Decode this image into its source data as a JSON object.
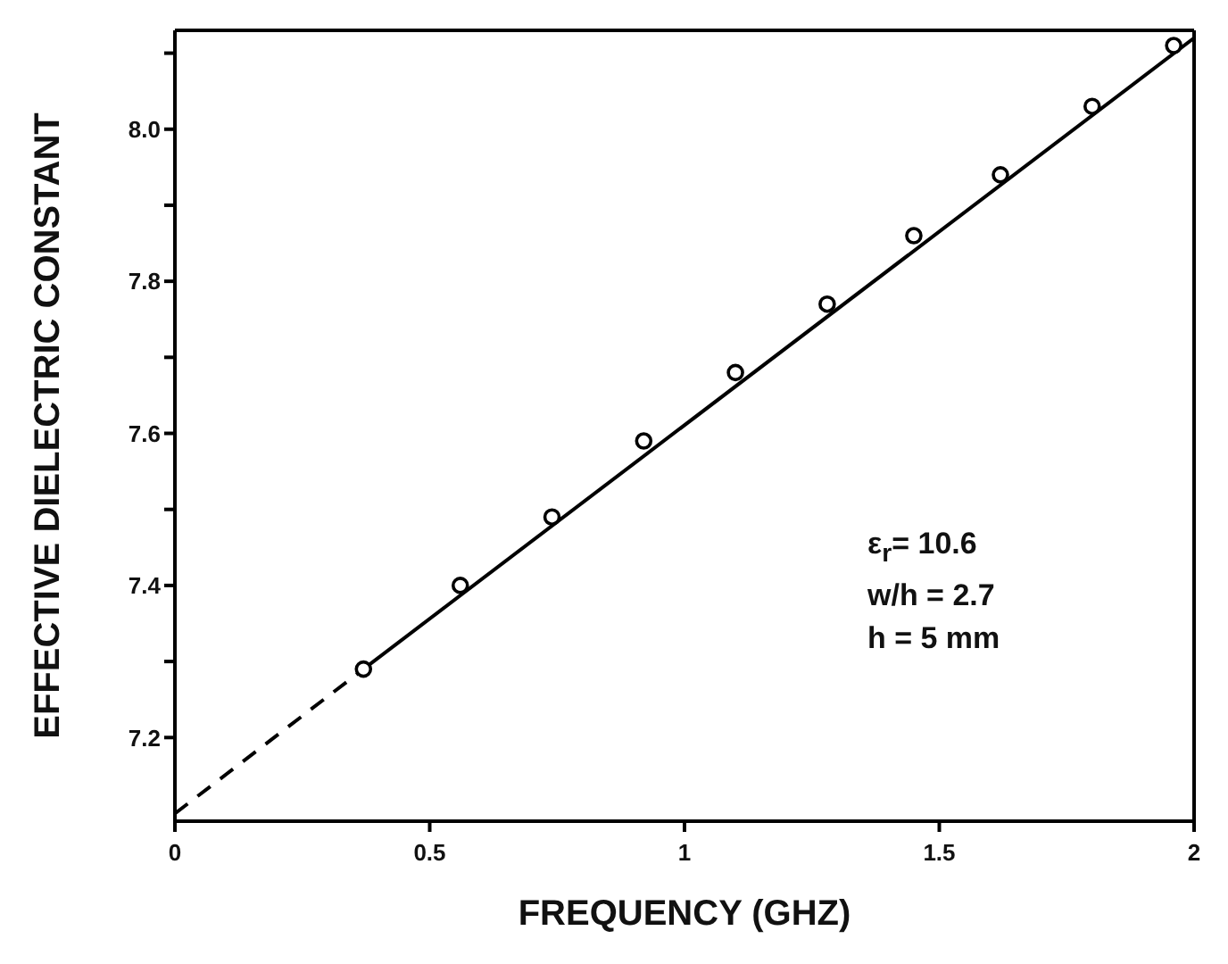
{
  "chart_data": {
    "type": "scatter",
    "xlabel": "FREQUENCY (GHZ)",
    "ylabel": "EFFECTIVE DIELECTRIC CONSTANT",
    "xlim": [
      0,
      2
    ],
    "xticks": [
      0,
      0.5,
      1,
      1.5,
      2
    ],
    "ylim": [
      7.09,
      8.13
    ],
    "yticks": [
      {
        "value": 7.2,
        "label": "7.2"
      },
      {
        "value": 7.3,
        "label": null
      },
      {
        "value": 7.4,
        "label": "7.4"
      },
      {
        "value": 7.5,
        "label": null
      },
      {
        "value": 7.6,
        "label": "7.6"
      },
      {
        "value": 7.7,
        "label": null
      },
      {
        "value": 7.8,
        "label": "7.8"
      },
      {
        "value": 7.9,
        "label": null
      },
      {
        "value": 8.0,
        "label": "8.0"
      },
      {
        "value": 8.1,
        "label": null
      }
    ],
    "annotations": [
      "ε$_{r}$= 10.6",
      "w/h = 2.7",
      "h = 5 mm"
    ],
    "series": [
      {
        "marker": "circle",
        "color": "#000000",
        "x": [
          0.37,
          0.56,
          0.74,
          0.92,
          1.1,
          1.28,
          1.45,
          1.62,
          1.8,
          1.96
        ],
        "values": [
          7.29,
          7.4,
          7.49,
          7.59,
          7.68,
          7.77,
          7.86,
          7.94,
          8.03,
          8.11
        ]
      },
      {
        "type": "line",
        "line_style": "solid",
        "color": "#000000",
        "x": [
          0.37,
          2
        ],
        "values": [
          7.29,
          8.12
        ]
      },
      {
        "type": "line",
        "line_style": "dashed",
        "color": "#000000",
        "x": [
          0,
          0.37
        ],
        "values": [
          7.1,
          7.29
        ]
      }
    ]
  }
}
